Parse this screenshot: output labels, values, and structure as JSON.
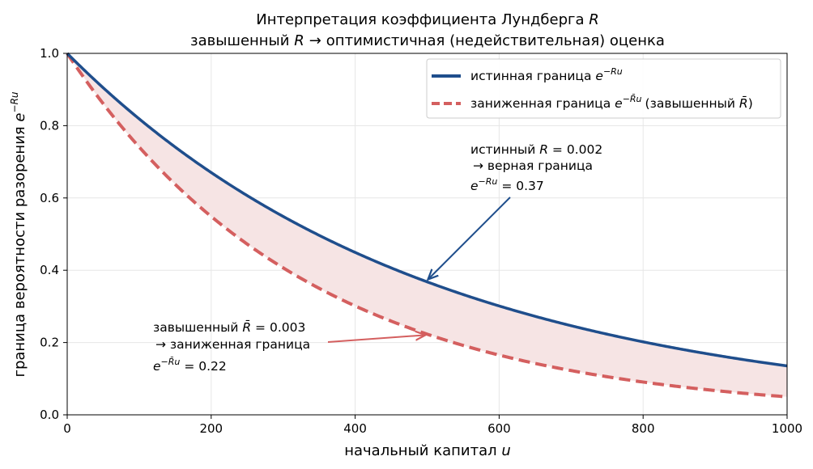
{
  "chart_data": {
    "type": "line",
    "title": {
      "line1_prefix": "Интерпретация коэффициента Лундберга ",
      "line1_symbol": "R",
      "line2_prefix": "завышенный ",
      "line2_symbol": "R",
      "line2_arrow": "→",
      "line2_suffix": "оптимистичная (недействительная) оценка"
    },
    "xlabel": {
      "text": "начальный капитал ",
      "symbol": "u"
    },
    "ylabel": {
      "text": "граница вероятности разорения ",
      "base": "e",
      "exponent": "−Ru"
    },
    "xlim": [
      0,
      1000
    ],
    "ylim": [
      0,
      1
    ],
    "x_ticks": [
      0,
      200,
      400,
      600,
      800,
      1000
    ],
    "x_tick_labels": [
      "0",
      "200",
      "400",
      "600",
      "800",
      "1000"
    ],
    "y_ticks": [
      0,
      0.2,
      0.4,
      0.6,
      0.8,
      1.0
    ],
    "y_tick_labels": [
      "0.0",
      "0.2",
      "0.4",
      "0.6",
      "0.8",
      "1.0"
    ],
    "grid": true,
    "legend_position": "top-right",
    "x_sample_step": 50,
    "series": [
      {
        "key": "true",
        "legend_text": "истинная граница ",
        "legend_base": "e",
        "legend_exponent": "−Ru",
        "rate": 0.002,
        "color": "#1f4e8c",
        "dash": "solid",
        "x": [
          0,
          50,
          100,
          150,
          200,
          250,
          300,
          350,
          400,
          450,
          500,
          550,
          600,
          650,
          700,
          750,
          800,
          850,
          900,
          950,
          1000
        ],
        "y": [
          1.0,
          0.905,
          0.819,
          0.741,
          0.67,
          0.607,
          0.549,
          0.497,
          0.449,
          0.407,
          0.368,
          0.333,
          0.301,
          0.273,
          0.247,
          0.223,
          0.202,
          0.183,
          0.165,
          0.15,
          0.135
        ]
      },
      {
        "key": "under",
        "legend_text": "заниженная граница ",
        "legend_base": "e",
        "legend_exponent": "−R̄u",
        "legend_suffix": "(завышенный ",
        "legend_suffix_symbol": "R̄",
        "legend_suffix_end": ")",
        "rate": 0.003,
        "color": "#d45f5f",
        "dash": "dashed",
        "x": [
          0,
          50,
          100,
          150,
          200,
          250,
          300,
          350,
          400,
          450,
          500,
          550,
          600,
          650,
          700,
          750,
          800,
          850,
          900,
          950,
          1000
        ],
        "y": [
          1.0,
          0.861,
          0.741,
          0.638,
          0.549,
          0.472,
          0.407,
          0.35,
          0.301,
          0.259,
          0.223,
          0.192,
          0.165,
          0.142,
          0.122,
          0.105,
          0.091,
          0.078,
          0.067,
          0.058,
          0.05
        ]
      }
    ],
    "fill_between": {
      "color": "#f6e4e4"
    },
    "annotations": [
      {
        "key": "ann_true",
        "line1_prefix": "истинный ",
        "line1_symbol": "R",
        "line1_value": " = 0.002",
        "line2": "→ верная граница",
        "line3_base": "e",
        "line3_exponent": "−Ru",
        "line3_value": " = 0.37",
        "text_x": 562,
        "text_y": 0.73,
        "point_x": 500,
        "point_y": 0.37,
        "color": "#1f4e8c"
      },
      {
        "key": "ann_under",
        "line1_prefix": "завышенный ",
        "line1_symbol": "R̄",
        "line1_value": " = 0.003",
        "line2": "→ заниженная граница",
        "line3_base": "e",
        "line3_exponent": "−R̄u",
        "line3_value": " = 0.22",
        "text_x": 120,
        "text_y": 0.245,
        "point_x": 500,
        "point_y": 0.223,
        "color": "#d45f5f"
      }
    ]
  }
}
